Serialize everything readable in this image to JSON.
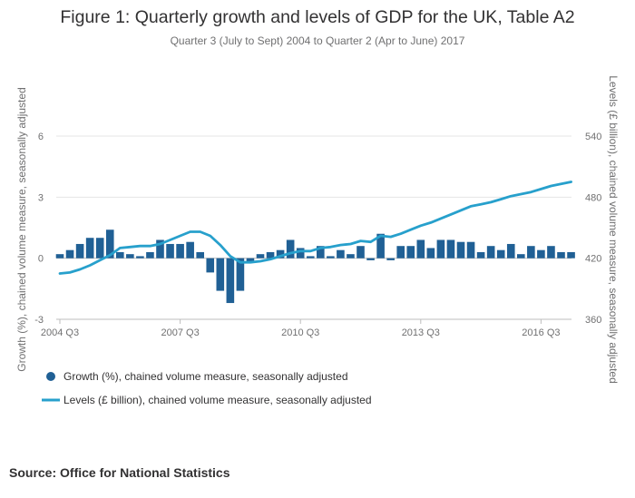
{
  "chart_data": {
    "type": "bar",
    "title": "Figure 1: Quarterly growth and levels of GDP for the UK, Table A2",
    "subtitle": "Quarter 3 (July to Sept) 2004 to Quarter 2 (Apr to June) 2017",
    "ylabel": "Growth (%), chained volume measure, seasonally adjusted",
    "y2label": "Levels (£ billion), chained volume measure, seasonally adjusted",
    "ylim": [
      -3,
      6
    ],
    "y2lim": [
      360,
      540
    ],
    "yticks": [
      "-3",
      "0",
      "3",
      "6"
    ],
    "y2ticks": [
      "360",
      "420",
      "480",
      "540"
    ],
    "xtick_labels": [
      "2004 Q3",
      "2007 Q3",
      "2010 Q3",
      "2013 Q3",
      "2016 Q3"
    ],
    "legend_position": "bottom-left",
    "colors": {
      "bars": "#206095",
      "line": "#27a0cc"
    },
    "categories": [
      "2004 Q3",
      "2004 Q4",
      "2005 Q1",
      "2005 Q2",
      "2005 Q3",
      "2005 Q4",
      "2006 Q1",
      "2006 Q2",
      "2006 Q3",
      "2006 Q4",
      "2007 Q1",
      "2007 Q2",
      "2007 Q3",
      "2007 Q4",
      "2008 Q1",
      "2008 Q2",
      "2008 Q3",
      "2008 Q4",
      "2009 Q1",
      "2009 Q2",
      "2009 Q3",
      "2009 Q4",
      "2010 Q1",
      "2010 Q2",
      "2010 Q3",
      "2010 Q4",
      "2011 Q1",
      "2011 Q2",
      "2011 Q3",
      "2011 Q4",
      "2012 Q1",
      "2012 Q2",
      "2012 Q3",
      "2012 Q4",
      "2013 Q1",
      "2013 Q2",
      "2013 Q3",
      "2013 Q4",
      "2014 Q1",
      "2014 Q2",
      "2014 Q3",
      "2014 Q4",
      "2015 Q1",
      "2015 Q2",
      "2015 Q3",
      "2015 Q4",
      "2016 Q1",
      "2016 Q2",
      "2016 Q3",
      "2016 Q4",
      "2017 Q1",
      "2017 Q2"
    ],
    "series": [
      {
        "name": "Growth (%), chained volume measure, seasonally adjusted",
        "type": "bar",
        "axis": "left",
        "values": [
          0.2,
          0.4,
          0.7,
          1.0,
          1.0,
          1.4,
          0.3,
          0.2,
          0.1,
          0.3,
          0.9,
          0.7,
          0.7,
          0.8,
          0.3,
          -0.7,
          -1.6,
          -2.2,
          -1.6,
          -0.2,
          0.2,
          0.3,
          0.4,
          0.9,
          0.5,
          0.1,
          0.6,
          0.1,
          0.4,
          0.2,
          0.6,
          -0.1,
          1.2,
          -0.1,
          0.6,
          0.6,
          0.9,
          0.5,
          0.9,
          0.9,
          0.8,
          0.8,
          0.3,
          0.6,
          0.4,
          0.7,
          0.2,
          0.6,
          0.4,
          0.6,
          0.3,
          0.3
        ]
      },
      {
        "name": "Levels (£ billion), chained volume measure, seasonally adjusted",
        "type": "line",
        "axis": "right",
        "values": [
          405,
          406,
          409,
          413,
          418,
          423,
          430,
          431,
          432,
          432,
          434,
          438,
          442,
          446,
          446,
          442,
          433,
          422,
          416,
          416,
          417,
          419,
          422,
          425,
          427,
          427,
          430,
          431,
          433,
          434,
          437,
          436,
          442,
          441,
          444,
          448,
          452,
          455,
          459,
          463,
          467,
          471,
          473,
          475,
          478,
          481,
          483,
          485,
          488,
          491,
          493,
          495
        ]
      }
    ],
    "source": "Source: Office for National Statistics"
  }
}
